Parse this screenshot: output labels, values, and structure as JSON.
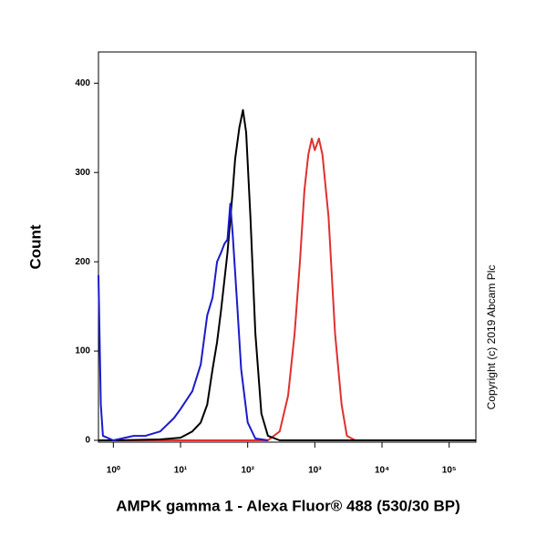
{
  "chart_data": {
    "type": "line",
    "x_label": "AMPK gamma 1 - Alexa Fluor® 488 (530/30 BP)",
    "y_label": "Count",
    "annotation": "Copyright (c) 2019 Abcam Plc",
    "xscale": "log",
    "xlim": [
      0.6,
      250000
    ],
    "ylim": [
      0,
      435
    ],
    "xticks": [
      {
        "value": 1,
        "label": "10⁰"
      },
      {
        "value": 10,
        "label": "10¹"
      },
      {
        "value": 100,
        "label": "10²"
      },
      {
        "value": 1000,
        "label": "10³"
      },
      {
        "value": 10000,
        "label": "10⁴"
      },
      {
        "value": 100000,
        "label": "10⁵"
      }
    ],
    "yticks": [
      0,
      100,
      200,
      300,
      400
    ],
    "series": [
      {
        "color": "#e03030",
        "x": [
          0.6,
          200,
          300,
          400,
          500,
          600,
          700,
          800,
          900,
          1000,
          1150,
          1300,
          1600,
          2000,
          2500,
          3000,
          4000,
          250000
        ],
        "values": [
          0,
          0,
          10,
          50,
          120,
          200,
          280,
          320,
          338,
          325,
          338,
          320,
          250,
          120,
          40,
          5,
          0,
          0
        ]
      },
      {
        "color": "#000000",
        "x": [
          0.6,
          1,
          5,
          10,
          15,
          20,
          25,
          30,
          35,
          40,
          50,
          60,
          65,
          75,
          85,
          95,
          110,
          130,
          160,
          200,
          300,
          250000
        ],
        "values": [
          0,
          0,
          1,
          3,
          10,
          20,
          40,
          80,
          110,
          145,
          210,
          280,
          315,
          350,
          370,
          345,
          250,
          120,
          30,
          5,
          0,
          0
        ]
      },
      {
        "color": "#1a1acc",
        "x": [
          0.6,
          0.65,
          0.7,
          1,
          2,
          3,
          5,
          8,
          10,
          15,
          20,
          25,
          30,
          35,
          40,
          45,
          50,
          55,
          60,
          70,
          80,
          100,
          130,
          200
        ],
        "values": [
          185,
          40,
          5,
          0,
          5,
          5,
          10,
          25,
          35,
          55,
          85,
          140,
          160,
          200,
          210,
          220,
          225,
          265,
          230,
          150,
          80,
          20,
          2,
          0
        ]
      }
    ]
  }
}
